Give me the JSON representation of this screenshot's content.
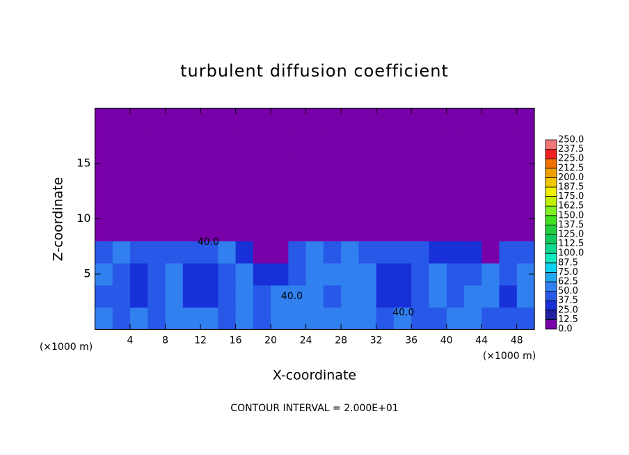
{
  "chart_data": {
    "type": "contour",
    "title": "turbulent diffusion coefficient",
    "x_label": "X-coordinate",
    "y_label": "Z-coordinate",
    "x_unit": "(×1000 m)",
    "x_unit_right": "(×1000 m)",
    "footnote": "CONTOUR INTERVAL = 2.000E+01",
    "xlim": [
      0,
      50
    ],
    "ylim": [
      0,
      20
    ],
    "xticks": [
      4,
      8,
      12,
      16,
      20,
      24,
      28,
      32,
      36,
      40,
      44,
      48
    ],
    "yticks": [
      5,
      10,
      15
    ],
    "levels": [
      {
        "value": 0,
        "label": "0.0"
      },
      {
        "value": 12.5,
        "label": "12.5"
      },
      {
        "value": 25,
        "label": "25.0"
      },
      {
        "value": 37.5,
        "label": "37.5"
      },
      {
        "value": 50,
        "label": "50.0"
      },
      {
        "value": 62.5,
        "label": "62.5"
      },
      {
        "value": 75,
        "label": "75.0"
      },
      {
        "value": 87.5,
        "label": "87.5"
      },
      {
        "value": 100,
        "label": "100.0"
      },
      {
        "value": 112.5,
        "label": "112.5"
      },
      {
        "value": 125,
        "label": "125.0"
      },
      {
        "value": 137.5,
        "label": "137.5"
      },
      {
        "value": 150,
        "label": "150.0"
      },
      {
        "value": 162.5,
        "label": "162.5"
      },
      {
        "value": 175,
        "label": "175.0"
      },
      {
        "value": 187.5,
        "label": "187.5"
      },
      {
        "value": 200,
        "label": "200.0"
      },
      {
        "value": 212.5,
        "label": "212.5"
      },
      {
        "value": 225,
        "label": "225.0"
      },
      {
        "value": 237.5,
        "label": "237.5"
      },
      {
        "value": 250,
        "label": "250.0"
      }
    ],
    "colors": [
      "#7800a8",
      "#2020a0",
      "#1830d8",
      "#2858e8",
      "#3080f0",
      "#20a8f0",
      "#10d0f0",
      "#10e8c0",
      "#10d890",
      "#10c860",
      "#20d040",
      "#40e020",
      "#80f020",
      "#c0f000",
      "#f0f000",
      "#f0c800",
      "#f0a000",
      "#f07000",
      "#f02020",
      "#f07878"
    ],
    "field": {
      "x_bins": [
        0,
        2,
        4,
        6,
        8,
        10,
        12,
        14,
        16,
        18,
        20,
        22,
        24,
        26,
        28,
        30,
        32,
        34,
        36,
        38,
        40,
        42,
        44,
        46,
        48,
        50
      ],
      "z_bins": [
        0,
        2,
        4,
        6,
        8,
        10,
        12,
        14,
        16,
        18,
        20
      ],
      "values": [
        [
          50,
          45,
          55,
          45,
          50,
          55,
          60,
          45,
          50,
          45,
          50,
          55,
          55,
          60,
          55,
          50,
          45,
          50,
          45,
          45,
          50,
          55,
          45,
          40,
          45
        ],
        [
          45,
          40,
          30,
          45,
          55,
          30,
          35,
          45,
          55,
          40,
          55,
          50,
          60,
          45,
          55,
          50,
          35,
          30,
          40,
          60,
          45,
          55,
          50,
          35,
          50
        ],
        [
          50,
          45,
          30,
          40,
          50,
          35,
          30,
          45,
          50,
          25,
          30,
          45,
          50,
          55,
          55,
          50,
          30,
          35,
          45,
          55,
          40,
          40,
          50,
          40,
          55
        ],
        [
          45,
          50,
          45,
          45,
          40,
          40,
          45,
          50,
          35,
          0,
          0,
          40,
          50,
          45,
          50,
          45,
          40,
          45,
          40,
          35,
          30,
          30,
          0,
          40,
          45
        ],
        [
          0,
          0,
          0,
          0,
          0,
          0,
          0,
          0,
          0,
          0,
          0,
          0,
          0,
          0,
          0,
          0,
          0,
          0,
          0,
          0,
          0,
          0,
          0,
          0,
          0
        ],
        [
          0,
          0,
          0,
          0,
          0,
          0,
          0,
          0,
          0,
          0,
          0,
          0,
          0,
          0,
          0,
          0,
          0,
          0,
          0,
          0,
          0,
          0,
          0,
          0,
          0
        ],
        [
          0,
          0,
          0,
          0,
          0,
          0,
          0,
          0,
          0,
          0,
          0,
          0,
          0,
          0,
          0,
          0,
          0,
          0,
          0,
          0,
          0,
          0,
          0,
          0,
          0
        ],
        [
          0,
          0,
          0,
          0,
          0,
          0,
          0,
          0,
          0,
          0,
          0,
          0,
          0,
          0,
          0,
          0,
          0,
          0,
          0,
          0,
          0,
          0,
          0,
          0,
          0
        ],
        [
          0,
          0,
          0,
          0,
          0,
          0,
          0,
          0,
          0,
          0,
          0,
          0,
          0,
          0,
          0,
          0,
          0,
          0,
          0,
          0,
          0,
          0,
          0,
          0,
          0
        ],
        [
          0,
          0,
          0,
          0,
          0,
          0,
          0,
          0,
          0,
          0,
          0,
          0,
          0,
          0,
          0,
          0,
          0,
          0,
          0,
          0,
          0,
          0,
          0,
          0,
          0
        ]
      ]
    },
    "contour_labels": [
      {
        "x": 12.9,
        "z": 7.9,
        "label": "40.0"
      },
      {
        "x": 22.4,
        "z": 3.0,
        "label": "40.0"
      },
      {
        "x": 35.1,
        "z": 1.5,
        "label": "40.0"
      }
    ]
  }
}
